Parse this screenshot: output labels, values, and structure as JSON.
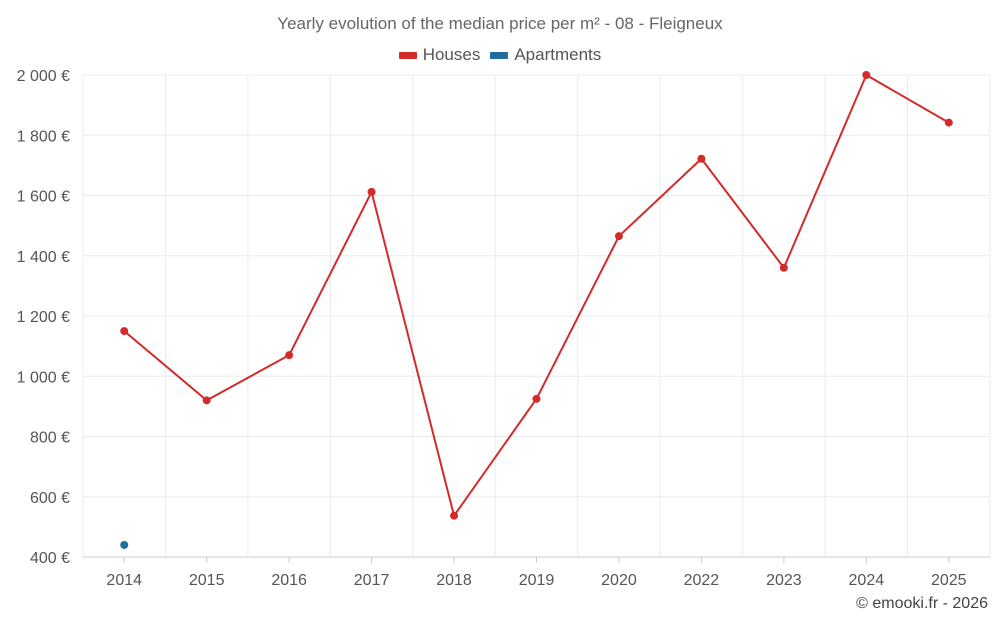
{
  "chart_data": {
    "type": "line",
    "title": "Yearly evolution of the median price per m² - 08 - Fleigneux",
    "categories": [
      "2014",
      "2015",
      "2016",
      "2017",
      "2018",
      "2019",
      "2020",
      "2022",
      "2023",
      "2024",
      "2025"
    ],
    "series": [
      {
        "name": "Houses",
        "color": "#d42a2a",
        "values": [
          1150,
          920,
          1070,
          1612,
          537,
          925,
          1465,
          1722,
          1360,
          2000,
          1842
        ]
      },
      {
        "name": "Apartments",
        "color": "#1f6e9c",
        "values": [
          440,
          null,
          null,
          null,
          null,
          null,
          null,
          null,
          null,
          null,
          null
        ]
      }
    ],
    "ylim": [
      400,
      2000
    ],
    "yticks": [
      400,
      600,
      800,
      1000,
      1200,
      1400,
      1600,
      1800,
      2000
    ],
    "ytick_labels": [
      "400 €",
      "600 €",
      "800 €",
      "1 000 €",
      "1 200 €",
      "1 400 €",
      "1 600 €",
      "1 800 €",
      "2 000 €"
    ],
    "grid": true,
    "legend_position": "top-center"
  },
  "credit": "© emooki.fr - 2026"
}
